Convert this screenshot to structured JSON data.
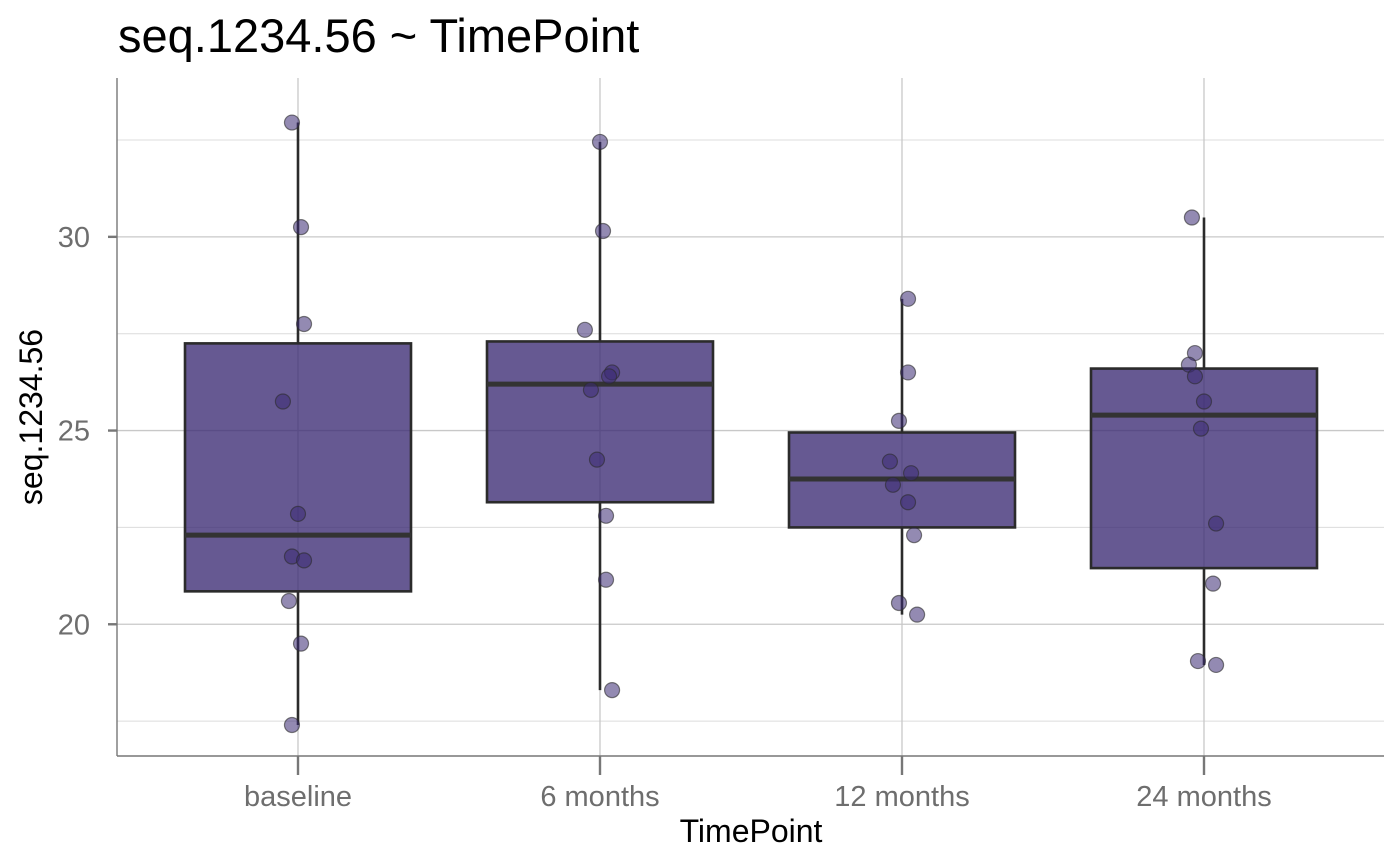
{
  "chart_data": {
    "type": "boxplot",
    "title": "seq.1234.56 ~ TimePoint",
    "xlabel": "TimePoint",
    "ylabel": "seq.1234.56",
    "categories": [
      "baseline",
      "6 months",
      "12 months",
      "24 months"
    ],
    "ylim": [
      16.6,
      34.1
    ],
    "yticks": [
      20,
      25,
      30
    ],
    "ytick_labels": [
      "20",
      "25",
      "30"
    ],
    "grid": true,
    "legend": "none",
    "colors": {
      "box_fill": "#3b2a73",
      "box_outline": "#2b2b2b",
      "point": "#3b2a73",
      "grid": "#dcdcdc",
      "axis": "#777777"
    },
    "boxes": [
      {
        "category": "baseline",
        "whisker_low": 17.4,
        "q1": 20.85,
        "median": 22.3,
        "q3": 27.25,
        "whisker_high": 32.95
      },
      {
        "category": "6 months",
        "whisker_low": 18.3,
        "q1": 23.15,
        "median": 26.2,
        "q3": 27.3,
        "whisker_high": 32.45
      },
      {
        "category": "12 months",
        "whisker_low": 20.25,
        "q1": 22.5,
        "median": 23.75,
        "q3": 24.95,
        "whisker_high": 28.4
      },
      {
        "category": "24 months",
        "whisker_low": 18.95,
        "q1": 21.45,
        "median": 25.4,
        "q3": 26.6,
        "whisker_high": 30.5
      }
    ],
    "points": [
      {
        "category": "baseline",
        "jitter": -0.02,
        "y": 32.95
      },
      {
        "category": "baseline",
        "jitter": 0.01,
        "y": 30.25
      },
      {
        "category": "baseline",
        "jitter": 0.02,
        "y": 27.75
      },
      {
        "category": "baseline",
        "jitter": -0.05,
        "y": 25.75
      },
      {
        "category": "baseline",
        "jitter": 0.0,
        "y": 22.85
      },
      {
        "category": "baseline",
        "jitter": -0.02,
        "y": 21.75
      },
      {
        "category": "baseline",
        "jitter": 0.02,
        "y": 21.65
      },
      {
        "category": "baseline",
        "jitter": -0.03,
        "y": 20.6
      },
      {
        "category": "baseline",
        "jitter": 0.01,
        "y": 19.5
      },
      {
        "category": "baseline",
        "jitter": -0.02,
        "y": 17.4
      },
      {
        "category": "6 months",
        "jitter": 0.0,
        "y": 32.45
      },
      {
        "category": "6 months",
        "jitter": 0.01,
        "y": 30.15
      },
      {
        "category": "6 months",
        "jitter": -0.05,
        "y": 27.6
      },
      {
        "category": "6 months",
        "jitter": 0.04,
        "y": 26.5
      },
      {
        "category": "6 months",
        "jitter": 0.03,
        "y": 26.4
      },
      {
        "category": "6 months",
        "jitter": -0.03,
        "y": 26.05
      },
      {
        "category": "6 months",
        "jitter": -0.01,
        "y": 24.25
      },
      {
        "category": "6 months",
        "jitter": 0.02,
        "y": 22.8
      },
      {
        "category": "6 months",
        "jitter": 0.02,
        "y": 21.15
      },
      {
        "category": "6 months",
        "jitter": 0.04,
        "y": 18.3
      },
      {
        "category": "12 months",
        "jitter": 0.02,
        "y": 28.4
      },
      {
        "category": "12 months",
        "jitter": 0.02,
        "y": 26.5
      },
      {
        "category": "12 months",
        "jitter": -0.01,
        "y": 25.25
      },
      {
        "category": "12 months",
        "jitter": -0.04,
        "y": 24.2
      },
      {
        "category": "12 months",
        "jitter": 0.03,
        "y": 23.9
      },
      {
        "category": "12 months",
        "jitter": -0.03,
        "y": 23.6
      },
      {
        "category": "12 months",
        "jitter": 0.02,
        "y": 23.15
      },
      {
        "category": "12 months",
        "jitter": 0.04,
        "y": 22.3
      },
      {
        "category": "12 months",
        "jitter": -0.01,
        "y": 20.55
      },
      {
        "category": "12 months",
        "jitter": 0.05,
        "y": 20.25
      },
      {
        "category": "24 months",
        "jitter": -0.04,
        "y": 30.5
      },
      {
        "category": "24 months",
        "jitter": -0.03,
        "y": 27.0
      },
      {
        "category": "24 months",
        "jitter": -0.05,
        "y": 26.7
      },
      {
        "category": "24 months",
        "jitter": -0.03,
        "y": 26.4
      },
      {
        "category": "24 months",
        "jitter": 0.0,
        "y": 25.75
      },
      {
        "category": "24 months",
        "jitter": -0.01,
        "y": 25.05
      },
      {
        "category": "24 months",
        "jitter": 0.04,
        "y": 22.6
      },
      {
        "category": "24 months",
        "jitter": 0.03,
        "y": 21.05
      },
      {
        "category": "24 months",
        "jitter": -0.02,
        "y": 19.05
      },
      {
        "category": "24 months",
        "jitter": 0.04,
        "y": 18.95
      }
    ]
  }
}
